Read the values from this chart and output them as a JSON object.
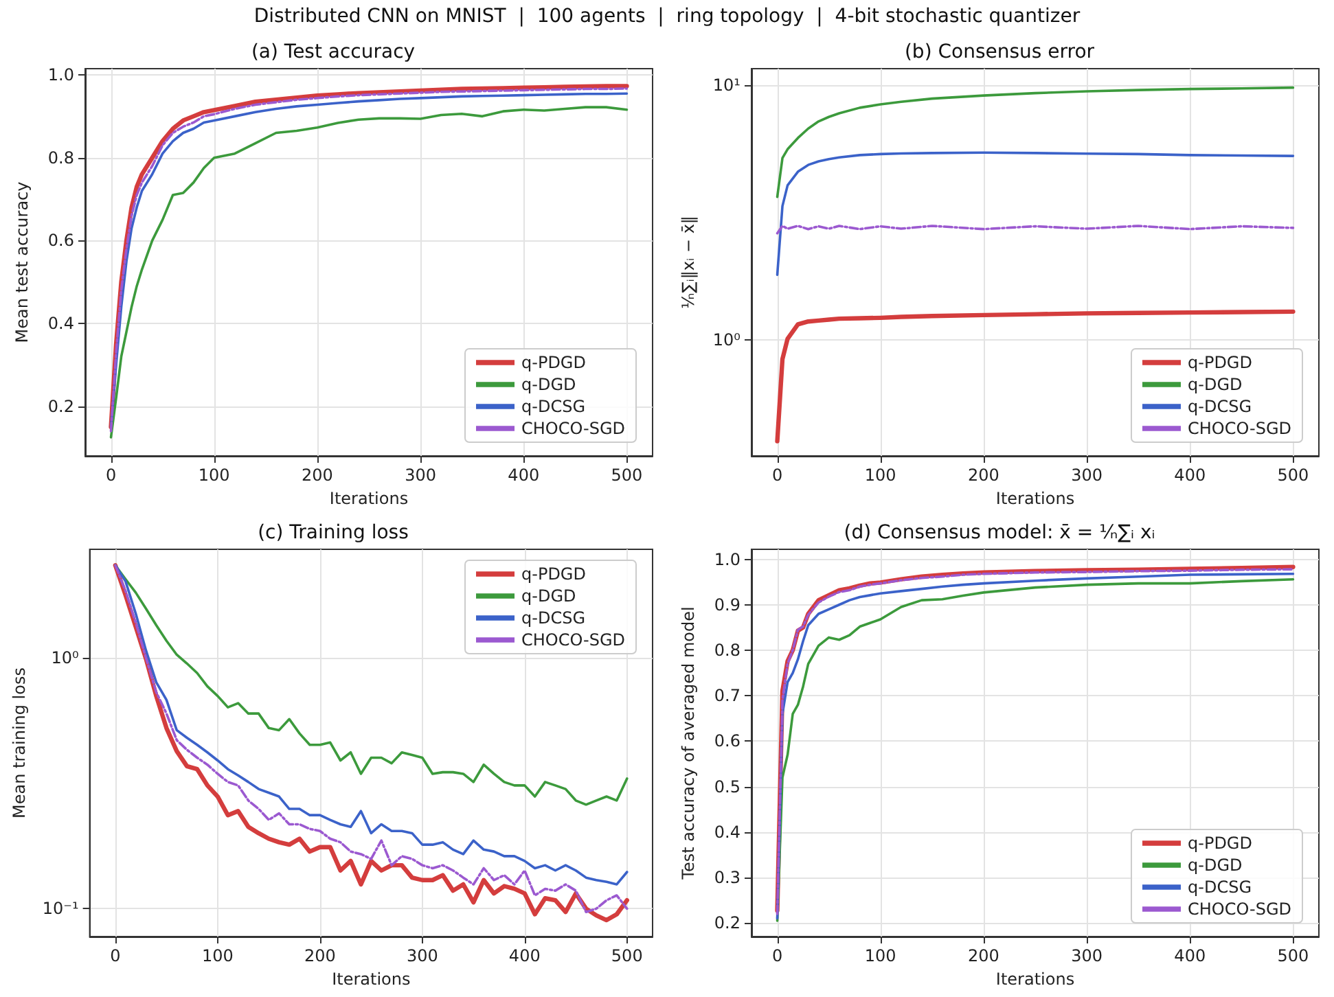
{
  "chart_data": [
    {
      "type": "line",
      "title": "(a) Test accuracy",
      "annotations": [
        "Distributed CNN on MNIST  |  100 agents  |  ring topology  |  4-bit stochastic quantizer"
      ],
      "xlabel": "Iterations",
      "ylabel": "Mean test accuracy",
      "xlim": [
        -25,
        525
      ],
      "xticks": [
        0,
        100,
        200,
        300,
        400,
        500
      ],
      "ylim": [
        0.08,
        1.015
      ],
      "yticks": [
        0.2,
        0.4,
        0.6,
        0.8,
        {
          "value": 1,
          "label": "1.0"
        }
      ],
      "grid": true,
      "legend": "bottom right",
      "marker": "none",
      "x": [
        0,
        5,
        10,
        15,
        20,
        25,
        30,
        40,
        50,
        60,
        70,
        80,
        90,
        100,
        120,
        140,
        160,
        180,
        200,
        220,
        240,
        260,
        280,
        300,
        320,
        340,
        360,
        380,
        400,
        420,
        440,
        460,
        480,
        500
      ],
      "series": [
        {
          "name": "q-PDGD",
          "color": "#d43d3d",
          "line_style": "solid",
          "values": [
            0.15,
            0.35,
            0.5,
            0.6,
            0.68,
            0.73,
            0.76,
            0.8,
            0.84,
            0.87,
            0.89,
            0.9,
            0.91,
            0.915,
            0.925,
            0.935,
            0.94,
            0.945,
            0.95,
            0.953,
            0.956,
            0.958,
            0.96,
            0.962,
            0.964,
            0.966,
            0.967,
            0.968,
            0.969,
            0.97,
            0.971,
            0.972,
            0.973,
            0.973
          ]
        },
        {
          "name": "q-DGD",
          "color": "#3c9a3c",
          "line_style": "solid",
          "values": [
            0.125,
            0.22,
            0.32,
            0.38,
            0.44,
            0.49,
            0.53,
            0.6,
            0.65,
            0.71,
            0.715,
            0.74,
            0.775,
            0.8,
            0.81,
            0.835,
            0.86,
            0.865,
            0.873,
            0.884,
            0.892,
            0.895,
            0.895,
            0.894,
            0.903,
            0.906,
            0.9,
            0.912,
            0.916,
            0.914,
            0.918,
            0.922,
            0.922,
            0.916
          ]
        },
        {
          "name": "q-DCSG",
          "color": "#3b62c9",
          "line_style": "solid",
          "values": [
            0.15,
            0.3,
            0.44,
            0.55,
            0.63,
            0.68,
            0.72,
            0.76,
            0.81,
            0.84,
            0.86,
            0.87,
            0.885,
            0.89,
            0.9,
            0.91,
            0.918,
            0.924,
            0.928,
            0.932,
            0.936,
            0.939,
            0.942,
            0.944,
            0.946,
            0.948,
            0.949,
            0.95,
            0.951,
            0.952,
            0.953,
            0.954,
            0.954,
            0.955
          ]
        },
        {
          "name": "CHOCO-SGD",
          "color": "#9b59d0",
          "line_style": "dashdot",
          "values": [
            0.14,
            0.33,
            0.48,
            0.58,
            0.66,
            0.71,
            0.74,
            0.78,
            0.83,
            0.86,
            0.875,
            0.885,
            0.9,
            0.905,
            0.918,
            0.928,
            0.934,
            0.94,
            0.944,
            0.948,
            0.951,
            0.953,
            0.955,
            0.957,
            0.959,
            0.96,
            0.961,
            0.962,
            0.963,
            0.964,
            0.965,
            0.966,
            0.966,
            0.967
          ]
        }
      ]
    },
    {
      "type": "line",
      "title": "(b) Consensus error",
      "xlabel": "Iterations",
      "ylabel": "¹⁄ₙ∑ᵢ‖xᵢ − x̄‖",
      "log": "y",
      "xlim": [
        -25,
        525
      ],
      "xticks": [
        0,
        100,
        200,
        300,
        400,
        500
      ],
      "ylim": [
        0.35,
        11.6
      ],
      "yticks": [
        {
          "value": 1,
          "label": "10⁰"
        },
        {
          "value": 10,
          "label": "10¹"
        }
      ],
      "grid": true,
      "legend": "bottom right",
      "marker": "none",
      "x": [
        0,
        5,
        10,
        20,
        30,
        40,
        50,
        60,
        80,
        100,
        120,
        150,
        200,
        250,
        300,
        350,
        400,
        450,
        500
      ],
      "series": [
        {
          "name": "q-PDGD",
          "color": "#d43d3d",
          "line_style": "solid",
          "values": [
            0.4,
            0.84,
            1.01,
            1.15,
            1.18,
            1.19,
            1.2,
            1.21,
            1.215,
            1.22,
            1.23,
            1.24,
            1.25,
            1.26,
            1.27,
            1.275,
            1.28,
            1.285,
            1.29
          ]
        },
        {
          "name": "q-DGD",
          "color": "#3c9a3c",
          "line_style": "solid",
          "values": [
            3.64,
            5.17,
            5.6,
            6.2,
            6.75,
            7.2,
            7.5,
            7.75,
            8.15,
            8.4,
            8.6,
            8.85,
            9.1,
            9.3,
            9.45,
            9.56,
            9.65,
            9.7,
            9.77
          ]
        },
        {
          "name": "q-DCSG",
          "color": "#3b62c9",
          "line_style": "solid",
          "values": [
            1.8,
            3.35,
            4.04,
            4.57,
            4.86,
            5.02,
            5.12,
            5.2,
            5.31,
            5.36,
            5.39,
            5.41,
            5.43,
            5.41,
            5.38,
            5.36,
            5.31,
            5.29,
            5.27
          ]
        },
        {
          "name": "CHOCO-SGD",
          "color": "#9b59d0",
          "line_style": "dashdot",
          "values": [
            2.62,
            2.8,
            2.73,
            2.8,
            2.72,
            2.79,
            2.73,
            2.8,
            2.72,
            2.79,
            2.73,
            2.8,
            2.72,
            2.79,
            2.73,
            2.8,
            2.72,
            2.79,
            2.75
          ]
        }
      ]
    },
    {
      "type": "line",
      "title": "(c) Training loss",
      "xlabel": "Iterations",
      "ylabel": "Mean training loss",
      "log": "y",
      "xlim": [
        -25,
        525
      ],
      "xticks": [
        0,
        100,
        200,
        300,
        400,
        500
      ],
      "ylim": [
        0.0774,
        2.71
      ],
      "yticks": [
        {
          "value": 0.1,
          "label": "10⁻¹"
        },
        {
          "value": 1,
          "label": "10⁰"
        }
      ],
      "grid": true,
      "legend": "top right",
      "marker": "none",
      "x": [
        0,
        10,
        20,
        30,
        40,
        50,
        60,
        70,
        80,
        90,
        100,
        110,
        120,
        130,
        140,
        150,
        160,
        170,
        180,
        190,
        200,
        210,
        220,
        230,
        240,
        250,
        260,
        270,
        280,
        290,
        300,
        310,
        320,
        330,
        340,
        350,
        360,
        370,
        380,
        390,
        400,
        410,
        420,
        430,
        440,
        450,
        460,
        470,
        480,
        490,
        500
      ],
      "series": [
        {
          "name": "q-PDGD",
          "color": "#d43d3d",
          "line_style": "solid",
          "values": [
            2.34,
            1.78,
            1.33,
            0.99,
            0.705,
            0.525,
            0.425,
            0.37,
            0.36,
            0.31,
            0.28,
            0.236,
            0.245,
            0.212,
            0.2,
            0.19,
            0.184,
            0.18,
            0.19,
            0.169,
            0.176,
            0.176,
            0.142,
            0.155,
            0.125,
            0.155,
            0.142,
            0.149,
            0.149,
            0.133,
            0.13,
            0.13,
            0.136,
            0.118,
            0.125,
            0.106,
            0.13,
            0.115,
            0.123,
            0.12,
            0.115,
            0.095,
            0.11,
            0.108,
            0.097,
            0.115,
            0.1,
            0.094,
            0.09,
            0.095,
            0.108
          ]
        },
        {
          "name": "q-DGD",
          "color": "#3c9a3c",
          "line_style": "solid",
          "values": [
            2.34,
            2.06,
            1.82,
            1.57,
            1.35,
            1.17,
            1.03,
            0.95,
            0.87,
            0.77,
            0.705,
            0.635,
            0.66,
            0.6,
            0.6,
            0.525,
            0.515,
            0.57,
            0.5,
            0.45,
            0.45,
            0.46,
            0.39,
            0.42,
            0.345,
            0.4,
            0.4,
            0.38,
            0.42,
            0.41,
            0.4,
            0.345,
            0.35,
            0.35,
            0.345,
            0.32,
            0.375,
            0.345,
            0.32,
            0.31,
            0.31,
            0.28,
            0.32,
            0.31,
            0.3,
            0.27,
            0.26,
            0.27,
            0.28,
            0.27,
            0.33
          ]
        },
        {
          "name": "q-DCSG",
          "color": "#3b62c9",
          "line_style": "solid",
          "values": [
            2.34,
            2.02,
            1.5,
            1.07,
            0.8,
            0.68,
            0.515,
            0.48,
            0.45,
            0.42,
            0.39,
            0.36,
            0.34,
            0.32,
            0.3,
            0.29,
            0.28,
            0.25,
            0.25,
            0.236,
            0.236,
            0.226,
            0.217,
            0.212,
            0.245,
            0.2,
            0.217,
            0.204,
            0.204,
            0.2,
            0.18,
            0.18,
            0.184,
            0.172,
            0.165,
            0.187,
            0.172,
            0.169,
            0.162,
            0.162,
            0.155,
            0.145,
            0.149,
            0.142,
            0.149,
            0.142,
            0.133,
            0.13,
            0.128,
            0.125,
            0.14
          ]
        },
        {
          "name": "CHOCO-SGD",
          "color": "#9b59d0",
          "line_style": "dashdot",
          "values": [
            2.34,
            1.85,
            1.38,
            1.0,
            0.73,
            0.6,
            0.47,
            0.43,
            0.4,
            0.375,
            0.345,
            0.32,
            0.31,
            0.27,
            0.25,
            0.226,
            0.24,
            0.217,
            0.217,
            0.208,
            0.204,
            0.19,
            0.184,
            0.169,
            0.165,
            0.158,
            0.187,
            0.149,
            0.162,
            0.158,
            0.149,
            0.145,
            0.149,
            0.142,
            0.133,
            0.125,
            0.145,
            0.13,
            0.136,
            0.125,
            0.142,
            0.113,
            0.12,
            0.118,
            0.125,
            0.118,
            0.097,
            0.1,
            0.108,
            0.113,
            0.1
          ]
        }
      ]
    },
    {
      "type": "line",
      "title": "(d) Consensus model: x̄ = ¹⁄ₙ∑ᵢ xᵢ",
      "xlabel": "Iterations",
      "ylabel": "Test accuracy of averaged model",
      "xlim": [
        -25,
        525
      ],
      "xticks": [
        0,
        100,
        200,
        300,
        400,
        500
      ],
      "ylim": [
        0.17,
        1.022
      ],
      "yticks": [
        0.2,
        0.3,
        0.4,
        0.5,
        0.6,
        0.7,
        0.8,
        0.9,
        {
          "value": 1,
          "label": "1.0"
        }
      ],
      "grid": true,
      "legend": "bottom right",
      "marker": "none",
      "x": [
        0,
        5,
        10,
        15,
        20,
        25,
        30,
        40,
        50,
        60,
        70,
        80,
        90,
        100,
        120,
        140,
        160,
        180,
        200,
        250,
        300,
        350,
        400,
        450,
        500
      ],
      "series": [
        {
          "name": "q-PDGD",
          "color": "#d43d3d",
          "line_style": "solid",
          "values": [
            0.227,
            0.71,
            0.776,
            0.8,
            0.843,
            0.85,
            0.88,
            0.91,
            0.921,
            0.932,
            0.936,
            0.942,
            0.947,
            0.949,
            0.956,
            0.962,
            0.966,
            0.969,
            0.971,
            0.974,
            0.976,
            0.977,
            0.979,
            0.981,
            0.983
          ]
        },
        {
          "name": "q-DGD",
          "color": "#3c9a3c",
          "line_style": "solid",
          "values": [
            0.205,
            0.52,
            0.57,
            0.66,
            0.68,
            0.72,
            0.77,
            0.81,
            0.828,
            0.823,
            0.833,
            0.852,
            0.86,
            0.868,
            0.895,
            0.91,
            0.912,
            0.92,
            0.927,
            0.938,
            0.944,
            0.947,
            0.947,
            0.952,
            0.956
          ]
        },
        {
          "name": "q-DCSG",
          "color": "#3b62c9",
          "line_style": "solid",
          "values": [
            0.21,
            0.66,
            0.73,
            0.75,
            0.78,
            0.82,
            0.855,
            0.88,
            0.89,
            0.9,
            0.91,
            0.917,
            0.921,
            0.925,
            0.93,
            0.935,
            0.94,
            0.944,
            0.947,
            0.953,
            0.958,
            0.962,
            0.966,
            0.967,
            0.968
          ]
        },
        {
          "name": "CHOCO-SGD",
          "color": "#9b59d0",
          "line_style": "dashdot",
          "values": [
            0.22,
            0.69,
            0.77,
            0.8,
            0.845,
            0.852,
            0.878,
            0.905,
            0.918,
            0.928,
            0.932,
            0.94,
            0.944,
            0.947,
            0.954,
            0.959,
            0.962,
            0.966,
            0.968,
            0.971,
            0.972,
            0.974,
            0.975,
            0.977,
            0.978
          ]
        }
      ]
    }
  ]
}
